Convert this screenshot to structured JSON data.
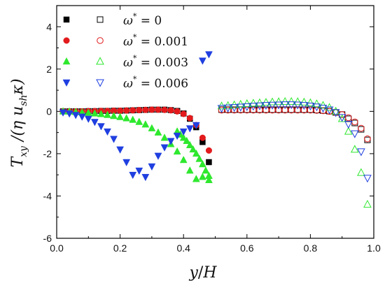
{
  "chart_data": {
    "type": "scatter",
    "xlim": [
      0.0,
      1.0
    ],
    "ylim": [
      -6,
      5
    ],
    "x_ticks": [
      "0.0",
      "0.2",
      "0.4",
      "0.6",
      "0.8",
      "1.0"
    ],
    "y_ticks": [
      "-6",
      "-4",
      "-2",
      "0",
      "2",
      "4"
    ],
    "x_tick_values": [
      0.0,
      0.2,
      0.4,
      0.6,
      0.8,
      1.0
    ],
    "y_tick_values": [
      -6,
      -4,
      -2,
      0,
      2,
      4
    ],
    "xlabel": {
      "main": "y",
      "slash": "/",
      "denom": "H"
    },
    "ylabel": {
      "T": "T",
      "Tsub": "xy",
      "slash": " /(η u",
      "usub": "sh",
      "kappa": "κ)"
    },
    "legend_position": "top-left",
    "legend": [
      {
        "symbol": "ω",
        "sup": "*",
        "value": " = 0"
      },
      {
        "symbol": "ω",
        "sup": "*",
        "value": " = 0.001"
      },
      {
        "symbol": "ω",
        "sup": "*",
        "value": " = 0.003"
      },
      {
        "symbol": "ω",
        "sup": "*",
        "value": " = 0.006"
      }
    ],
    "series": [
      {
        "marker": "square",
        "color": "#000000",
        "filled": {
          "x": [
            0.02,
            0.04,
            0.06,
            0.08,
            0.1,
            0.12,
            0.14,
            0.16,
            0.18,
            0.2,
            0.22,
            0.24,
            0.26,
            0.28,
            0.3,
            0.32,
            0.34,
            0.36,
            0.38,
            0.4,
            0.42,
            0.44,
            0.46,
            0.48
          ],
          "y": [
            0.0,
            0.0,
            0.0,
            0.0,
            0.01,
            0.01,
            0.02,
            0.02,
            0.03,
            0.03,
            0.04,
            0.05,
            0.06,
            0.07,
            0.08,
            0.08,
            0.08,
            0.06,
            0.02,
            -0.1,
            -0.35,
            -0.75,
            -1.45,
            -2.4
          ]
        },
        "open": {
          "x": [
            0.52,
            0.54,
            0.56,
            0.58,
            0.6,
            0.62,
            0.64,
            0.66,
            0.68,
            0.7,
            0.72,
            0.74,
            0.76,
            0.78,
            0.8,
            0.82,
            0.84,
            0.86,
            0.88,
            0.9,
            0.92,
            0.94,
            0.96,
            0.98
          ],
          "y": [
            0.08,
            0.08,
            0.08,
            0.08,
            0.08,
            0.08,
            0.08,
            0.08,
            0.08,
            0.08,
            0.08,
            0.08,
            0.08,
            0.08,
            0.08,
            0.06,
            0.04,
            0.01,
            -0.05,
            -0.15,
            -0.35,
            -0.55,
            -0.85,
            -1.35
          ]
        }
      },
      {
        "marker": "circle",
        "color": "#e31a1c",
        "filled": {
          "x": [
            0.02,
            0.04,
            0.06,
            0.08,
            0.1,
            0.12,
            0.14,
            0.16,
            0.18,
            0.2,
            0.22,
            0.24,
            0.26,
            0.28,
            0.3,
            0.32,
            0.34,
            0.36,
            0.38,
            0.4,
            0.42,
            0.44,
            0.46,
            0.48
          ],
          "y": [
            0.0,
            0.0,
            0.0,
            0.0,
            0.01,
            0.01,
            0.02,
            0.02,
            0.03,
            0.03,
            0.04,
            0.05,
            0.06,
            0.07,
            0.08,
            0.08,
            0.07,
            0.05,
            0.0,
            -0.12,
            -0.32,
            -0.65,
            -1.25,
            -1.85
          ]
        },
        "open": {
          "x": [
            0.52,
            0.54,
            0.56,
            0.58,
            0.6,
            0.62,
            0.64,
            0.66,
            0.68,
            0.7,
            0.72,
            0.74,
            0.76,
            0.78,
            0.8,
            0.82,
            0.84,
            0.86,
            0.88,
            0.9,
            0.92,
            0.94,
            0.96,
            0.98
          ],
          "y": [
            0.06,
            0.06,
            0.06,
            0.06,
            0.06,
            0.06,
            0.06,
            0.06,
            0.06,
            0.06,
            0.06,
            0.06,
            0.06,
            0.06,
            0.06,
            0.05,
            0.03,
            0.0,
            -0.05,
            -0.15,
            -0.3,
            -0.5,
            -0.8,
            -1.3
          ]
        }
      },
      {
        "marker": "triangle-up",
        "color": "#2ee82e",
        "filled": {
          "x": [
            0.02,
            0.04,
            0.06,
            0.08,
            0.1,
            0.12,
            0.14,
            0.16,
            0.18,
            0.2,
            0.22,
            0.24,
            0.26,
            0.28,
            0.3,
            0.32,
            0.34,
            0.36,
            0.38,
            0.4,
            0.42,
            0.44,
            0.46,
            0.48,
            0.48,
            0.47,
            0.46,
            0.45,
            0.44,
            0.43,
            0.42,
            0.41,
            0.4,
            0.39,
            0.38
          ],
          "y": [
            0.0,
            -0.01,
            -0.03,
            -0.05,
            -0.07,
            -0.1,
            -0.13,
            -0.17,
            -0.22,
            -0.27,
            -0.33,
            -0.4,
            -0.5,
            -0.62,
            -0.8,
            -1.0,
            -1.25,
            -1.55,
            -1.9,
            -2.3,
            -2.8,
            -3.2,
            -3.1,
            -3.25,
            -3.05,
            -2.8,
            -2.5,
            -2.25,
            -2.0,
            -1.8,
            -1.6,
            -1.4,
            -1.25,
            -1.1,
            -0.95
          ]
        },
        "open": {
          "x": [
            0.52,
            0.54,
            0.56,
            0.58,
            0.6,
            0.62,
            0.64,
            0.66,
            0.68,
            0.7,
            0.72,
            0.74,
            0.76,
            0.78,
            0.8,
            0.82,
            0.84,
            0.86,
            0.88,
            0.9,
            0.92,
            0.94,
            0.96,
            0.98
          ],
          "y": [
            0.25,
            0.27,
            0.3,
            0.33,
            0.36,
            0.38,
            0.4,
            0.42,
            0.44,
            0.45,
            0.46,
            0.46,
            0.45,
            0.43,
            0.4,
            0.35,
            0.28,
            0.18,
            0.0,
            -0.35,
            -0.95,
            -1.8,
            -2.9,
            -4.4
          ]
        }
      },
      {
        "marker": "triangle-down",
        "color": "#1f3fe0",
        "filled": {
          "x": [
            0.02,
            0.04,
            0.06,
            0.08,
            0.1,
            0.12,
            0.14,
            0.16,
            0.18,
            0.2,
            0.22,
            0.24,
            0.26,
            0.28,
            0.3,
            0.32,
            0.34,
            0.36,
            0.38,
            0.4,
            0.42,
            0.44,
            0.46,
            0.48
          ],
          "y": [
            -0.05,
            -0.1,
            -0.17,
            -0.25,
            -0.35,
            -0.5,
            -0.7,
            -0.95,
            -1.3,
            -1.8,
            -2.4,
            -3.0,
            -2.8,
            -3.1,
            -2.6,
            -2.1,
            -1.7,
            -1.4,
            -1.15,
            -0.95,
            -0.8,
            -0.65,
            2.4,
            2.7
          ]
        },
        "open": {
          "x": [
            0.52,
            0.54,
            0.56,
            0.58,
            0.6,
            0.62,
            0.64,
            0.66,
            0.68,
            0.7,
            0.72,
            0.74,
            0.76,
            0.78,
            0.8,
            0.82,
            0.84,
            0.86,
            0.88,
            0.9,
            0.92,
            0.94,
            0.96,
            0.98
          ],
          "y": [
            0.15,
            0.17,
            0.19,
            0.21,
            0.23,
            0.25,
            0.27,
            0.29,
            0.3,
            0.31,
            0.32,
            0.32,
            0.31,
            0.29,
            0.26,
            0.22,
            0.16,
            0.08,
            -0.05,
            -0.28,
            -0.6,
            -1.05,
            -1.9,
            -3.15
          ]
        }
      }
    ]
  }
}
